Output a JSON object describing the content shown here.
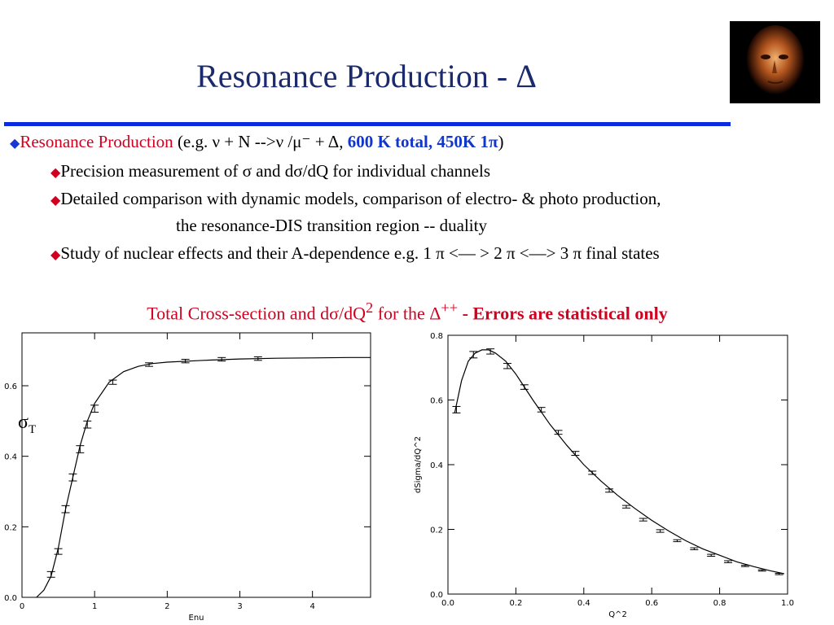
{
  "slide": {
    "title": "Resonance Production - Δ",
    "bullet1": {
      "lead": "Resonance Production",
      "mid": " (e.g. ν + N -->ν /μ⁻ + Δ, ",
      "bold": "600 K total, 450K 1π",
      "end": ")"
    },
    "sub1": "Precision measurement of σ and dσ/dQ for individual channels",
    "sub2": "Detailed comparison with dynamic models, comparison of electro- & photo production,",
    "sub2_cont": "the resonance-DIS transition region -- duality",
    "sub3": "Study of nuclear effects and their A-dependence e.g. 1 π <–– > 2 π <––>  3 π final states",
    "caption_main": "Total Cross-section and dσ/dQ",
    "caption_sup": "2",
    "caption_mid": " for the Δ",
    "caption_sup2": "++",
    "caption_bold": " - Errors are statistical only",
    "left_ylabel_sigma": "σ",
    "left_ylabel_sub": "T"
  },
  "chart_data": [
    {
      "type": "line",
      "xlabel": "Enu",
      "ylabel": "σT",
      "xlim": [
        0,
        4.8
      ],
      "ylim": [
        0,
        0.75
      ],
      "xticks": [
        "0",
        "1",
        "2",
        "3",
        "4"
      ],
      "yticks": [
        "0.0",
        "0.2",
        "0.4",
        "0.6"
      ],
      "xtick_values": [
        0,
        1,
        2,
        3,
        4
      ],
      "ytick_values": [
        0,
        0.2,
        0.4,
        0.6
      ],
      "curve_x": [
        0.2,
        0.3,
        0.4,
        0.5,
        0.6,
        0.7,
        0.8,
        0.9,
        1.0,
        1.2,
        1.4,
        1.6,
        1.8,
        2.0,
        2.5,
        3.0,
        3.5,
        4.0,
        4.5,
        4.8
      ],
      "curve_y": [
        0.0,
        0.02,
        0.06,
        0.14,
        0.25,
        0.34,
        0.43,
        0.5,
        0.55,
        0.61,
        0.64,
        0.655,
        0.663,
        0.667,
        0.672,
        0.676,
        0.678,
        0.679,
        0.68,
        0.68
      ],
      "points_x": [
        0.4,
        0.5,
        0.6,
        0.7,
        0.8,
        0.9,
        1.0,
        1.25,
        1.75,
        2.25,
        2.75,
        3.25
      ],
      "points_y": [
        0.065,
        0.13,
        0.25,
        0.34,
        0.42,
        0.49,
        0.535,
        0.61,
        0.66,
        0.67,
        0.675,
        0.677
      ],
      "errors": [
        0.008,
        0.008,
        0.01,
        0.01,
        0.01,
        0.01,
        0.01,
        0.006,
        0.005,
        0.005,
        0.005,
        0.005
      ]
    },
    {
      "type": "line",
      "xlabel": "Q^2",
      "ylabel": "dSigma/dQ^2",
      "xlim": [
        0,
        1.0
      ],
      "ylim": [
        0,
        0.8
      ],
      "xticks": [
        "0.0",
        "0.2",
        "0.4",
        "0.6",
        "0.8",
        "1.0"
      ],
      "yticks": [
        "0.0",
        "0.2",
        "0.4",
        "0.6",
        "0.8"
      ],
      "xtick_values": [
        0,
        0.2,
        0.4,
        0.6,
        0.8,
        1.0
      ],
      "ytick_values": [
        0,
        0.2,
        0.4,
        0.6,
        0.8
      ],
      "curve_x": [
        0.02,
        0.04,
        0.06,
        0.08,
        0.1,
        0.12,
        0.14,
        0.17,
        0.2,
        0.25,
        0.3,
        0.35,
        0.4,
        0.45,
        0.5,
        0.55,
        0.6,
        0.65,
        0.7,
        0.75,
        0.8,
        0.85,
        0.9,
        0.95,
        0.99
      ],
      "curve_y": [
        0.56,
        0.66,
        0.72,
        0.745,
        0.755,
        0.755,
        0.745,
        0.72,
        0.68,
        0.6,
        0.525,
        0.46,
        0.4,
        0.35,
        0.305,
        0.265,
        0.228,
        0.195,
        0.165,
        0.14,
        0.12,
        0.1,
        0.085,
        0.072,
        0.063
      ],
      "points_x": [
        0.025,
        0.075,
        0.125,
        0.175,
        0.225,
        0.275,
        0.325,
        0.375,
        0.425,
        0.475,
        0.525,
        0.575,
        0.625,
        0.675,
        0.725,
        0.775,
        0.825,
        0.875,
        0.925,
        0.975
      ],
      "points_y": [
        0.57,
        0.74,
        0.75,
        0.705,
        0.64,
        0.57,
        0.5,
        0.435,
        0.375,
        0.32,
        0.27,
        0.23,
        0.195,
        0.165,
        0.14,
        0.12,
        0.1,
        0.087,
        0.073,
        0.062
      ],
      "errors": [
        0.01,
        0.01,
        0.008,
        0.008,
        0.007,
        0.007,
        0.006,
        0.006,
        0.005,
        0.005,
        0.004,
        0.004,
        0.004,
        0.003,
        0.003,
        0.003,
        0.003,
        0.002,
        0.002,
        0.002
      ]
    }
  ]
}
